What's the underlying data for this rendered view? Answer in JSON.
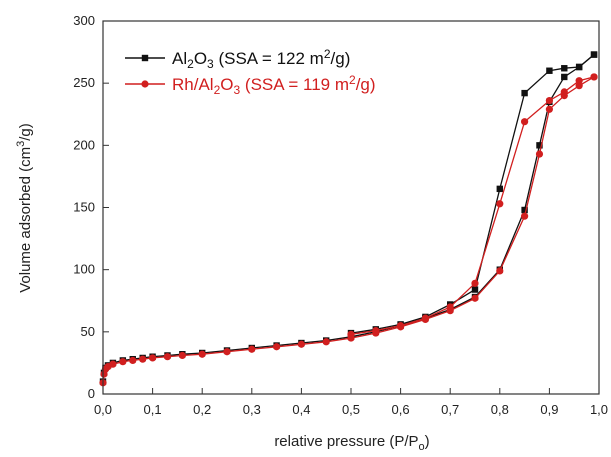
{
  "chart_data": {
    "type": "line",
    "xlabel": "relative pressure (P/P₀)",
    "xlabel_main": "relative pressure (P/P",
    "xlabel_sub": "o",
    "xlabel_close": ")",
    "ylabel": "Volume adsorbed (cm³/g)",
    "ylabel_main": "Volume adsorbed (cm",
    "ylabel_sup": "3",
    "ylabel_close": "/g)",
    "xlim": [
      0.0,
      1.0
    ],
    "ylim": [
      0,
      300
    ],
    "xticks": [
      "0,0",
      "0,1",
      "0,2",
      "0,3",
      "0,4",
      "0,5",
      "0,6",
      "0,7",
      "0,8",
      "0,9",
      "1,0"
    ],
    "yticks": [
      "0",
      "50",
      "100",
      "150",
      "200",
      "250",
      "300"
    ],
    "legend_position": "top-left",
    "series": [
      {
        "name": "Al₂O₃ (SSA = 122 m²/g)",
        "color": "#111111",
        "marker": "square",
        "legend_parts": [
          "Al",
          "2",
          "O",
          "3",
          " (SSA = 122 m",
          "2",
          "/g)"
        ],
        "adsorption": [
          [
            0.0,
            10
          ],
          [
            0.002,
            17
          ],
          [
            0.005,
            21
          ],
          [
            0.01,
            23
          ],
          [
            0.02,
            25
          ],
          [
            0.04,
            27
          ],
          [
            0.06,
            28
          ],
          [
            0.08,
            29
          ],
          [
            0.1,
            30
          ],
          [
            0.13,
            31
          ],
          [
            0.16,
            32
          ],
          [
            0.2,
            33
          ],
          [
            0.25,
            35
          ],
          [
            0.3,
            37
          ],
          [
            0.35,
            39
          ],
          [
            0.4,
            41
          ],
          [
            0.45,
            43
          ],
          [
            0.5,
            46
          ],
          [
            0.55,
            50
          ],
          [
            0.6,
            55
          ],
          [
            0.65,
            61
          ],
          [
            0.7,
            68
          ],
          [
            0.75,
            78
          ],
          [
            0.8,
            100
          ],
          [
            0.85,
            148
          ],
          [
            0.88,
            200
          ],
          [
            0.9,
            235
          ],
          [
            0.93,
            255
          ],
          [
            0.96,
            263
          ],
          [
            0.99,
            273
          ]
        ],
        "desorption": [
          [
            0.99,
            273
          ],
          [
            0.96,
            263
          ],
          [
            0.93,
            262
          ],
          [
            0.9,
            260
          ],
          [
            0.85,
            242
          ],
          [
            0.8,
            165
          ],
          [
            0.75,
            84
          ],
          [
            0.7,
            72
          ],
          [
            0.65,
            62
          ],
          [
            0.6,
            56
          ],
          [
            0.55,
            52
          ],
          [
            0.5,
            49
          ]
        ]
      },
      {
        "name": "Rh/Al₂O₃ (SSA = 119 m²/g)",
        "color": "#d11f1f",
        "marker": "circle",
        "legend_parts": [
          "Rh/Al",
          "2",
          "O",
          "3",
          " (SSA = 119 m",
          "2",
          "/g)"
        ],
        "adsorption": [
          [
            0.0,
            9
          ],
          [
            0.002,
            16
          ],
          [
            0.005,
            20
          ],
          [
            0.01,
            22
          ],
          [
            0.02,
            24
          ],
          [
            0.04,
            26
          ],
          [
            0.06,
            27
          ],
          [
            0.08,
            28
          ],
          [
            0.1,
            29
          ],
          [
            0.13,
            30
          ],
          [
            0.16,
            31
          ],
          [
            0.2,
            32
          ],
          [
            0.25,
            34
          ],
          [
            0.3,
            36
          ],
          [
            0.35,
            38
          ],
          [
            0.4,
            40
          ],
          [
            0.45,
            42
          ],
          [
            0.5,
            45
          ],
          [
            0.55,
            49
          ],
          [
            0.6,
            54
          ],
          [
            0.65,
            60
          ],
          [
            0.7,
            67
          ],
          [
            0.75,
            77
          ],
          [
            0.8,
            99
          ],
          [
            0.85,
            143
          ],
          [
            0.88,
            193
          ],
          [
            0.9,
            229
          ],
          [
            0.93,
            240
          ],
          [
            0.96,
            248
          ],
          [
            0.99,
            255
          ]
        ],
        "desorption": [
          [
            0.99,
            255
          ],
          [
            0.96,
            252
          ],
          [
            0.93,
            243
          ],
          [
            0.9,
            236
          ],
          [
            0.85,
            219
          ],
          [
            0.8,
            153
          ],
          [
            0.75,
            89
          ],
          [
            0.7,
            70
          ],
          [
            0.65,
            61
          ],
          [
            0.6,
            55
          ],
          [
            0.55,
            51
          ],
          [
            0.5,
            48
          ]
        ]
      }
    ]
  }
}
